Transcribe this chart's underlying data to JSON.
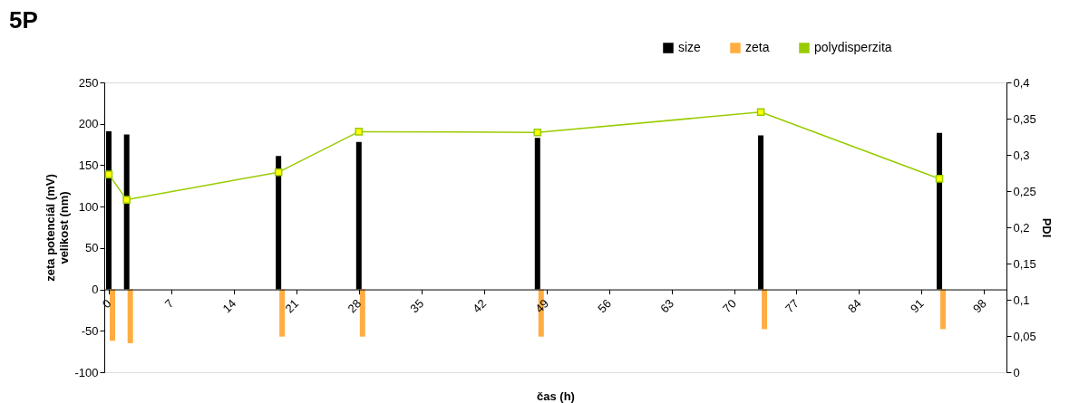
{
  "chart_data": {
    "type": "bar",
    "title": "5P",
    "xlabel": "čas (h)",
    "ylabel": "zeta potenciál (mV)\nvelikost (nm)",
    "y2label": "PDI",
    "x": [
      0,
      2,
      19,
      28,
      48,
      73,
      93
    ],
    "series": [
      {
        "name": "size",
        "color": "#000000",
        "values": [
          191,
          187,
          161,
          178,
          183,
          186,
          189
        ]
      },
      {
        "name": "zeta",
        "color": "#ffad42",
        "values": [
          -62,
          -65,
          -57,
          -57,
          -57,
          -48,
          -48
        ]
      },
      {
        "name": "polydisperzita",
        "type": "line",
        "axis": "y2",
        "color": "#99cc00",
        "marker": "square",
        "values": [
          0.273,
          0.238,
          0.276,
          0.332,
          0.331,
          0.359,
          0.267
        ]
      }
    ],
    "xlim": [
      0,
      100
    ],
    "xticks": [
      0,
      7,
      14,
      21,
      28,
      35,
      42,
      49,
      56,
      63,
      70,
      77,
      84,
      91,
      98
    ],
    "ylim": [
      -100,
      250
    ],
    "yticks": [
      -100,
      -50,
      0,
      50,
      100,
      150,
      200,
      250
    ],
    "y2lim": [
      0,
      0.4
    ],
    "y2ticks": [
      {
        "value": 0,
        "label": "0"
      },
      {
        "value": 0.05,
        "label": "0,05"
      },
      {
        "value": 0.1,
        "label": "0,1"
      },
      {
        "value": 0.15,
        "label": "0,15"
      },
      {
        "value": 0.2,
        "label": "0,2"
      },
      {
        "value": 0.25,
        "label": "0,25"
      },
      {
        "value": 0.3,
        "label": "0,3"
      },
      {
        "value": 0.35,
        "label": "0,35"
      },
      {
        "value": 0.4,
        "label": "0,4"
      }
    ],
    "grid": false,
    "legend": "top right"
  }
}
